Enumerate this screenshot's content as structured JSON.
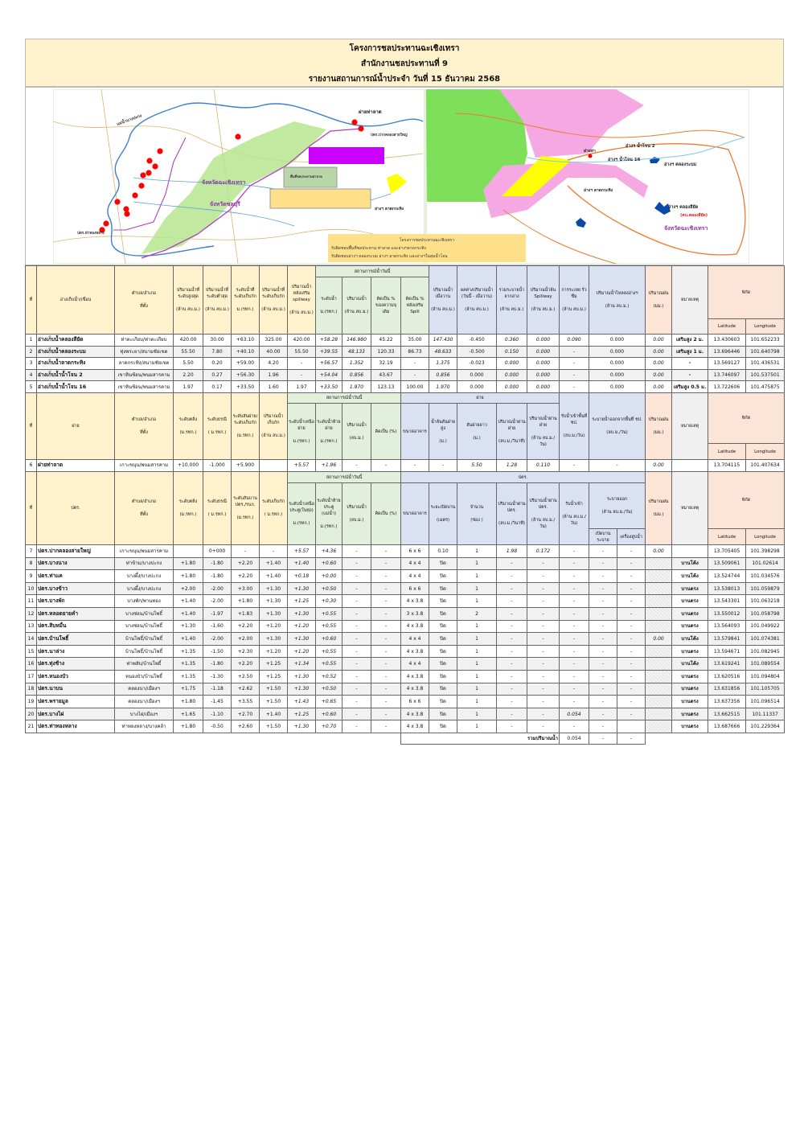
{
  "title": {
    "line1": "โครงการชลประทานฉะเชิงเทรา",
    "line2": "สำนักงานชลประทานที่ 9",
    "line3": "รายงานสถานการณ์น้ำประจำ วันที่ 15 ธันวาคม 2568"
  },
  "colors": {
    "beige": "#fff2cc",
    "green": "#e2efda",
    "blue": "#d9e1f2",
    "salmon": "#fce4d6"
  },
  "map": {
    "labels": [
      "ฝายท่าลาด",
      "ปตร.ปากคลองสายใหญ่",
      "ปตร.ท่าทองหลาง",
      "แม่น้ำบางปะกง",
      "จังหวัดฉะเชิงเทรา",
      "จังหวัดชลบุรี",
      "อ่างฯ ลาดกระทิง",
      "พื้นที่ชลประทานท่าลาด",
      "อ่างฯ น้ำโจน 2",
      "อ่างฯ น้ำโจน 16",
      "อ่างฯ คลองระบม",
      "อ่างฯ คลองสียัด",
      "(คบ.คลองสียัด)",
      "จังหวัดฉะเชิงเทรา",
      "ฝายท่า",
      "อ่างฯ ลาดกระทิง"
    ],
    "legend": [
      "โครงการชลประทานฉะเชิงเทรา",
      "รับผิดชอบพื้นที่ชลประทาน ท่าลาด และอ่างฯลาดกระทิง",
      "รับผิดชอบอ่างฯ คลองระบม อ่างฯ ลาดกระทิง และอ่างฯในลุ่มน้ำโจน"
    ]
  },
  "reservoirs": {
    "head": [
      {
        "label": "ที่"
      },
      {
        "label": "อ่างเก็บน้ำ/เขื่อน"
      },
      {
        "label": "ตำบล/อำเภอ",
        "unit": "ที่ตั้ง"
      },
      {
        "label": "ปริมาณน้ำที่ระดับสูงสุด",
        "unit": "(ล้าน ลบ.ม.)"
      },
      {
        "label": "ปริมาณน้ำที่ระดับต่ำสุด",
        "unit": "(ล้าน ลบ.ม.)"
      },
      {
        "label": "ระดับน้ำที่ระดับเก็บกัก",
        "unit": "ม.(รทก.)"
      },
      {
        "label": "ปริมาณน้ำที่ระดับเก็บกัก",
        "unit": "(ล้าน ลบ.ม.)"
      },
      {
        "label": "ปริมาณน้ำหลังเสริม spillway",
        "unit": "(ล้าน ลบ.ม.)"
      },
      {
        "label": "สถานการณ์น้ำวันนี้"
      },
      {
        "label": "ปริมาณน้ำเมื่อวาน",
        "unit": "(ล้าน ลบ.ม.)"
      },
      {
        "label": "ผลต่างปริมาณน้ำ (วันนี้ - เมื่อวาน)",
        "unit": "(ล้าน ลบ.ม.)"
      },
      {
        "label": "รวมระบายน้ำจากอ่าง",
        "unit": "(ล้าน ลบ.ม.)"
      },
      {
        "label": "ปริมาณน้ำล้น Spillway",
        "unit": "(ล้าน ลบ.ม.)"
      },
      {
        "label": "การระเหย รั่วซึม",
        "unit": "(ล้าน ลบ.ม.)"
      },
      {
        "label": "ปริมาณน้ำไหลลงอ่างฯ",
        "unit": "(ล้าน ลบ.ม.)"
      },
      {
        "label": "ปริมาณฝน",
        "unit": "(มม.)"
      },
      {
        "label": "หมายเหตุ"
      },
      {
        "label": "พิกัด"
      },
      {
        "label": "ระดับน้ำ",
        "unit": "ม.(รทก.)"
      },
      {
        "label": "ปริมาณน้ำ",
        "unit": "(ล้าน ลบ.ม.)"
      },
      {
        "label": "คิดเป็น % ของความจุเดิม"
      },
      {
        "label": "คิดเป็น % หลังเสริม Spill"
      },
      {
        "label": "Latitude"
      },
      {
        "label": "Longitude"
      }
    ],
    "rows": [
      [
        "1",
        "อ่างเก็บน้ำคลองสียัด",
        "ท่าตะเกียบ/ท่าตะเกียบ",
        "420.00",
        "30.00",
        "+63.10",
        "325.00",
        "420.00",
        "+58.28",
        "146.980",
        "45.22",
        "35.00",
        "147.430",
        "-0.450",
        "0.360",
        "0.000",
        "0.090",
        "0.000",
        "0.00",
        "เสริมสูง 2 ม.",
        "13.430603",
        "101.652233"
      ],
      [
        "2",
        "อ่างเก็บน้ำคลองระบม",
        "ทุ่งพระยา/สนามชัยเขต",
        "55.50",
        "7.80",
        "+40.10",
        "40.00",
        "55.50",
        "+39.55",
        "48.133",
        "120.33",
        "86.73",
        "48.633",
        "-0.500",
        "0.150",
        "0.000",
        "-",
        "0.000",
        "0.00",
        "เสริมสูง 1 ม.",
        "13.696446",
        "101.640798"
      ],
      [
        "3",
        "อ่างเก็บน้ำลาดกระทิง",
        "ลาดกระทิง/สนามชัยเขต",
        "5.50",
        "0.20",
        "+59.00",
        "4.20",
        "-",
        "+56.57",
        "1.352",
        "32.19",
        "-",
        "1.375",
        "-0.023",
        "0.000",
        "0.000",
        "-",
        "0.000",
        "0.00",
        "-",
        "13.569127",
        "101.436531"
      ],
      [
        "4",
        "อ่างเก็บน้ำน้ำโจน 2",
        "เขาหินซ้อน/พนมสารคาม",
        "2.20",
        "0.27",
        "+56.30",
        "1.96",
        "-",
        "+54.04",
        "0.856",
        "43.67",
        "-",
        "0.856",
        "0.000",
        "0.000",
        "0.000",
        "-",
        "0.000",
        "0.00",
        "-",
        "13.746097",
        "101.537501"
      ],
      [
        "5",
        "อ่างเก็บน้ำน้ำโจน 16",
        "เขาหินซ้อน/พนมสารคาม",
        "1.97",
        "0.17",
        "+33.50",
        "1.60",
        "1.97",
        "+33.50",
        "1.970",
        "123.13",
        "100.00",
        "1.970",
        "0.000",
        "0.000",
        "0.000",
        "-",
        "0.000",
        "0.00",
        "เสริมสูง 0.5 ม.",
        "13.722606",
        "101.475875"
      ]
    ]
  },
  "weirs": {
    "head": [
      {
        "label": "ที่"
      },
      {
        "label": "ฝาย"
      },
      {
        "label": "ตำบล/อำเภอ",
        "unit": "ที่ตั้ง"
      },
      {
        "label": "ระดับตลิ่ง",
        "unit": "(ม.รทก.)"
      },
      {
        "label": "ระดับธรณี",
        "unit": "( ม.รทก.)"
      },
      {
        "label": "ระดับสันฝาย/ระดับเก็บกัก",
        "unit": "(ม.รทก.)"
      },
      {
        "label": "ปริมาณน้ำเก็บกัก",
        "unit": "(ล้าน ลบ.ม.)"
      },
      {
        "label": "สถานการณ์น้ำวันนี้"
      },
      {
        "label": "ฝาย"
      },
      {
        "label": "รับน้ำเข้าพื้นที่ ชป.",
        "unit": "(ลบ.ม./วัน)"
      },
      {
        "label": "ระบายน้ำออกจากพื้นที่ ชป.",
        "unit": "(ลบ.ม./วัน)"
      },
      {
        "label": "ปริมาณฝน",
        "unit": "(มม.)"
      },
      {
        "label": "หมายเหตุ"
      },
      {
        "label": "พิกัด"
      },
      {
        "label": "ระดับน้ำเหนือฝาย",
        "unit": "ม.(รทก.)"
      },
      {
        "label": "ระดับน้ำท้ายฝาย",
        "unit": "ม.(รทก.)"
      },
      {
        "label": "ปริมาณน้ำ",
        "unit": "(ลบ.ม.)"
      },
      {
        "label": "คิดเป็น (%)"
      },
      {
        "label": "ขนาดอาคาร"
      },
      {
        "label": "น้ำล้นสันฝายสูง",
        "unit": "(ม.)"
      },
      {
        "label": "สันฝายยาว",
        "unit": "(ม.)"
      },
      {
        "label": "ปริมาณน้ำผ่านฝาย",
        "unit": "(ลบ.ม./วินาที)"
      },
      {
        "label": "ปริมาณน้ำผ่านฝาย",
        "unit": "(ล้าน ลบ.ม./วัน)"
      },
      {
        "label": "Latitude"
      },
      {
        "label": "Longitude"
      }
    ],
    "rows": [
      [
        "6",
        "ฝายท่าลาด",
        "เกาะขนุน/พนมสารคาม",
        "+10.000",
        "-1.000",
        "+5.900",
        "",
        "+5.57",
        "+1.96",
        "-",
        "-",
        "-",
        "-",
        "5.50",
        "1.28",
        "0.110",
        "-",
        "-",
        "0.00",
        "",
        "13.704115",
        "101.407634"
      ]
    ]
  },
  "gates": {
    "head": [
      {
        "label": "ที่"
      },
      {
        "label": "ปตร."
      },
      {
        "label": "ตำบล/อำเภอ",
        "unit": "ที่ตั้ง"
      },
      {
        "label": "ระดับตลิ่ง",
        "unit": "(ม.รทก.)"
      },
      {
        "label": "ระดับธรณี",
        "unit": "( ม.รทก.)"
      },
      {
        "label": "ระดับสันบานปตร./รนก.",
        "unit": "(ม.รทก.)"
      },
      {
        "label": "ระดับเก็บกัก",
        "unit": "( ม.รทก.)"
      },
      {
        "label": "สถานการณ์น้ำวันนี้"
      },
      {
        "label": "ปตร."
      },
      {
        "label": "ปริมาณฝน",
        "unit": "(มม.)"
      },
      {
        "label": "หมายเหตุ"
      },
      {
        "label": "พิกัด"
      },
      {
        "label": "ระดับน้ำเหนือประตู(ในทุ่ง)",
        "unit": "ม.(รทก.)"
      },
      {
        "label": "ระดับน้ำท้ายประตู (แม่น้ำ)",
        "unit": "ม.(รทก.)"
      },
      {
        "label": "ปริมาณน้ำ",
        "unit": "(ลบ.ม.)"
      },
      {
        "label": "คิดเป็น (%)"
      },
      {
        "label": "ขนาดอาคาร"
      },
      {
        "label": "ระยะเปิดบาน",
        "unit": "(เมตร)"
      },
      {
        "label": "จำนวน",
        "unit": "(ช่อง )"
      },
      {
        "label": "ปริมาณน้ำผ่าน ปตร.",
        "unit": "(ลบ.ม./วินาที)"
      },
      {
        "label": "ปริมาณน้ำผ่าน ปตร.",
        "unit": "(ล้าน ลบ.ม./วัน)"
      },
      {
        "label": "รับน้ำเข้า",
        "unit": "(ล้าน ลบ.ม./วัน)"
      },
      {
        "label": "ระบายออก",
        "unit": "(ล้าน ลบ.ม./วัน)"
      },
      {
        "label": "เปิดบานระบาย"
      },
      {
        "label": "เครื่องสูบน้ำ"
      },
      {
        "label": "Latitude"
      },
      {
        "label": "Longitude"
      }
    ],
    "rows": [
      [
        "7",
        "ปตร.ปากคลองสายใหญ่",
        "เกาะขนุน/พนมสารคาม",
        "",
        "0+000",
        "-",
        "-",
        "+5.57",
        "+4.36",
        "-",
        "-",
        "6 x 6",
        "0.10",
        "1",
        "1.98",
        "0.172",
        "-",
        "-",
        "-",
        "0.00",
        "",
        "13.705405",
        "101.398298"
      ],
      [
        "8",
        "ปตร.บางนาง",
        "ท่าข้าม/บางปะกง",
        "+1.80",
        "-1.80",
        "+2.20",
        "+1.40",
        "+1.40",
        "+0.60",
        "-",
        "-",
        "4 x 4",
        "ปิด",
        "1",
        "-",
        "-",
        "-",
        "-",
        "-",
        "",
        "บานโค้ง",
        "13.509061",
        "101.02614"
      ],
      [
        "9",
        "ปตร.ท่าแค",
        "บางผึ้ง/บางปะกง",
        "+1.80",
        "-1.80",
        "+2.20",
        "+1.40",
        "+0.18",
        "+0.00",
        "-",
        "-",
        "4 x 4",
        "ปิด",
        "1",
        "-",
        "-",
        "-",
        "-",
        "-",
        "",
        "บานโค้ง",
        "13.524744",
        "101.034576"
      ],
      [
        "10",
        "ปตร.บางข้าว",
        "บางผึ้ง/บางปะกง",
        "+2.00",
        "-2.00",
        "+3.00",
        "+1.30",
        "+1.30",
        "+0.50",
        "-",
        "-",
        "6 x 6",
        "ปิด",
        "1",
        "-",
        "-",
        "-",
        "-",
        "-",
        "",
        "บานตรง",
        "13.538013",
        "101.059879"
      ],
      [
        "11",
        "ปตร.บางพัก",
        "บางพัก/พานทอง",
        "+1.40",
        "-2.00",
        "+1.80",
        "+1.30",
        "+1.25",
        "+0.30",
        "-",
        "-",
        "4 x 3.8",
        "ปิด",
        "1",
        "-",
        "-",
        "-",
        "-",
        "-",
        "",
        "บานตรง",
        "13.543301",
        "101.063218"
      ],
      [
        "12",
        "ปตร.หลอดยายคำ",
        "บางซ่อน/บ้านโพธิ์",
        "+1.40",
        "-1.97",
        "+1.83",
        "+1.30",
        "+1.30",
        "+0.55",
        "-",
        "-",
        "3 x 3.8",
        "ปิด",
        "2",
        "-",
        "-",
        "-",
        "-",
        "-",
        "",
        "บานตรง",
        "13.550012",
        "101.058798"
      ],
      [
        "13",
        "ปตร.สิบหมื่น",
        "บางซ่อน/บ้านโพธิ์",
        "+1.30",
        "-1.60",
        "+2.20",
        "+1.20",
        "+1.20",
        "+0.55",
        "-",
        "-",
        "4 x 3.8",
        "ปิด",
        "1",
        "-",
        "-",
        "-",
        "-",
        "-",
        "",
        "บานตรง",
        "13.564093",
        "101.049922"
      ],
      [
        "14",
        "ปตร.บ้านโพธิ์",
        "บ้านโพธิ์/บ้านโพธิ์",
        "+1.40",
        "-2.00",
        "+2.00",
        "+1.30",
        "+1.30",
        "+0.60",
        "-",
        "-",
        "4 x 4",
        "ปิด",
        "1",
        "-",
        "-",
        "-",
        "-",
        "-",
        "0.00",
        "บานโค้ง",
        "13.579841",
        "101.074381"
      ],
      [
        "15",
        "ปตร.นาล่าง",
        "บ้านโพธิ์/บ้านโพธิ์",
        "+1.35",
        "-1.50",
        "+2.30",
        "+1.20",
        "+1.20",
        "+0.55",
        "-",
        "-",
        "4 x 3.8",
        "ปิด",
        "1",
        "-",
        "-",
        "-",
        "-",
        "-",
        "",
        "บานตรง",
        "13.594671",
        "101.082945"
      ],
      [
        "16",
        "ปตร.ทุ่งช้าง",
        "ท่าพลับ/บ้านโพธิ์",
        "+1.35",
        "-1.80",
        "+2.20",
        "+1.25",
        "+1.34",
        "+0.55",
        "-",
        "-",
        "4 x 4",
        "ปิด",
        "1",
        "-",
        "-",
        "-",
        "-",
        "-",
        "",
        "บานโค้ง",
        "13.619241",
        "101.089554"
      ],
      [
        "17",
        "ปตร.หนองบัว",
        "หนองบัว/บ้านโพธิ์",
        "+1.35",
        "-1.30",
        "+2.50",
        "+1.25",
        "+1.30",
        "+0.52",
        "-",
        "-",
        "4 x 3.8",
        "ปิด",
        "1",
        "-",
        "-",
        "-",
        "-",
        "-",
        "",
        "บานตรง",
        "13.620516",
        "101.094804"
      ],
      [
        "18",
        "ปตร.นาบน",
        "คลองนา/เมืองฯ",
        "+1.75",
        "-1.18",
        "+2.62",
        "+1.50",
        "+1.30",
        "+0.50",
        "-",
        "-",
        "4 x 3.8",
        "ปิด",
        "1",
        "-",
        "-",
        "-",
        "-",
        "-",
        "",
        "บานตรง",
        "13.631856",
        "101.105705"
      ],
      [
        "19",
        "ปตร.พรายมูล",
        "คลองนา/เมืองฯ",
        "+1.80",
        "-1.45",
        "+3.55",
        "+1.50",
        "+1.43",
        "+0.65",
        "-",
        "-",
        "6 x 6",
        "ปิด",
        "1",
        "-",
        "-",
        "-",
        "-",
        "-",
        "",
        "บานตรง",
        "13.637356",
        "101.096514"
      ],
      [
        "20",
        "ปตร.บางไผ่",
        "บางไผ่/เมืองฯ",
        "+1.65",
        "-1.10",
        "+2.70",
        "+1.40",
        "+1.25",
        "+0.60",
        "-",
        "-",
        "4 x 3.8",
        "ปิด",
        "1",
        "-",
        "-",
        "0.054",
        "-",
        "-",
        "",
        "บานตรง",
        "13.662515",
        "101.11337"
      ],
      [
        "21",
        "ปตร.ท่าทองหลาง",
        "ท่าทองหลาง/บางคล้า",
        "+1.80",
        "-0.50",
        "+2.60",
        "+1.50",
        "+1.30",
        "+0.70",
        "-",
        "-",
        "4 x 3.8",
        "ปิด",
        "1",
        "-",
        "-",
        "-",
        "-",
        "",
        "",
        "บานตรง",
        "13.687666",
        "101.229364"
      ]
    ],
    "total": {
      "label": "รวมปริมาณน้ำ",
      "intake": "0.054",
      "release_gate": "-",
      "release_pump": "-"
    }
  }
}
